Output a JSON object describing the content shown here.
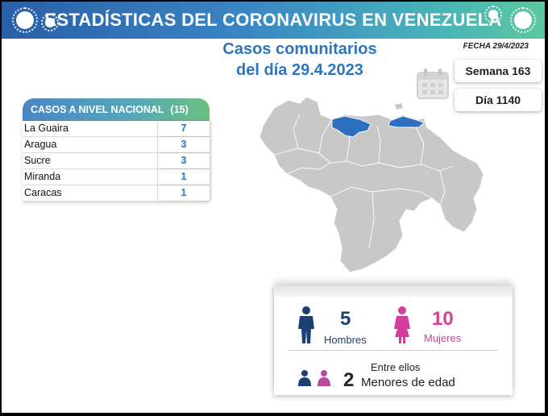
{
  "banner": {
    "title": "ESTADÍSTICAS DEL CORONAVIRUS EN VENEZUELA"
  },
  "report": {
    "title_line1": "Casos comunitarios",
    "title_line2": "del día 29.4.2023",
    "date": "FECHA 29/4/2023",
    "week": "Semana 163",
    "day": "Día 1140"
  },
  "national": {
    "header": "CASOS A NIVEL NACIONAL",
    "total": "(15)",
    "rows": [
      {
        "state": "La Guaira",
        "cases": "7"
      },
      {
        "state": "Aragua",
        "cases": "3"
      },
      {
        "state": "Sucre",
        "cases": "3"
      },
      {
        "state": "Miranda",
        "cases": "1"
      },
      {
        "state": "Caracas",
        "cases": "1"
      }
    ]
  },
  "demographics": {
    "men_count": "5",
    "men_label": "Hombres",
    "women_count": "10",
    "women_label": "Mujeres",
    "minors_intro": "Entre ellos",
    "minors_count": "2",
    "minors_label": "Menores de edad"
  },
  "colors": {
    "accent_blue": "#2c76bd",
    "women_pink": "#d63c9b",
    "men_navy": "#1d3f73",
    "map_gray": "#c8c8c8",
    "map_highlight": "#2f6fc0"
  },
  "icons": [
    "virus-icon",
    "calendar-icon",
    "man-icon",
    "woman-icon",
    "children-icon"
  ]
}
